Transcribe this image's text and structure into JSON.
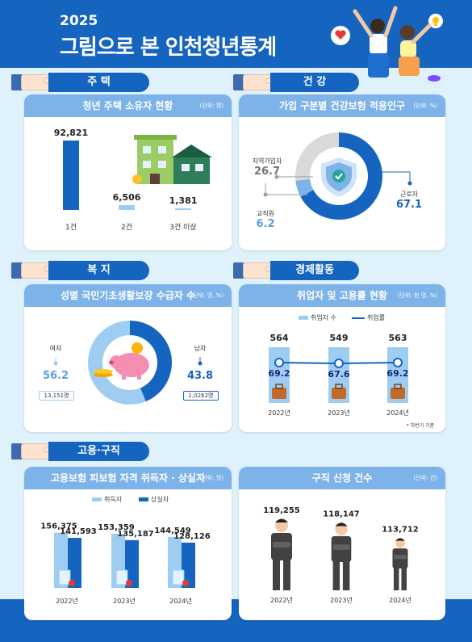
{
  "header": {
    "year": "2025",
    "title": "그림으로 본 인천청년통계"
  },
  "sections": {
    "housing": "주 택",
    "health": "건 강",
    "welfare": "복 지",
    "economy": "경제활동",
    "employment": "고용·구직"
  },
  "housing_card": {
    "title": "청년 주택 소유자 현황",
    "unit": "(단위: 명)"
  },
  "health_card": {
    "title": "가입 구분별 건강보험 적용인구",
    "unit": "(단위: %)",
    "items": [
      {
        "name": "지역가입자",
        "value": "26.7"
      },
      {
        "name": "교직원",
        "value": "6.2"
      },
      {
        "name": "근로자",
        "value": "67.1"
      }
    ]
  },
  "welfare_card": {
    "title": "성별 국민기초생활보장 수급자 수",
    "unit": "(단위: 명, %)",
    "female": {
      "name": "여자",
      "pct": "56.2",
      "count": "13,151명"
    },
    "male": {
      "name": "남자",
      "pct": "43.8",
      "count": "1,0262명"
    }
  },
  "economy_card": {
    "title": "취업자 및 고용률 현황",
    "unit": "(단위: 천 명, %)",
    "legend_bar": "취업자 수",
    "legend_line": "취업률",
    "footnote": "* 하반기 기준"
  },
  "insurance_card": {
    "title": "고용보험 피보험 자격 취득자 · 상실자",
    "unit": "(단위: 명)",
    "legend_a": "취득자",
    "legend_b": "상실자"
  },
  "jobseek_card": {
    "title": "구직 신청 건수",
    "unit": "(단위: 건)"
  },
  "chart_data": [
    {
      "type": "bar",
      "title": "청년 주택 소유자 현황",
      "categories": [
        "1건",
        "2건",
        "3건 이상"
      ],
      "values": [
        92821,
        6506,
        1381
      ],
      "labels": [
        "92,821",
        "6,506",
        "1,381"
      ]
    },
    {
      "type": "pie",
      "title": "가입 구분별 건강보험 적용인구",
      "categories": [
        "근로자",
        "교직원",
        "지역가입자"
      ],
      "values": [
        67.1,
        6.2,
        26.7
      ],
      "colors": [
        "#1565c0",
        "#7db3e8",
        "#d9d9d9"
      ]
    },
    {
      "type": "pie",
      "title": "성별 국민기초생활보장 수급자 수",
      "categories": [
        "남자",
        "여자"
      ],
      "values": [
        43.8,
        56.2
      ],
      "colors": [
        "#1565c0",
        "#9fcdf2"
      ]
    },
    {
      "type": "bar",
      "title": "취업자 및 고용률 현황",
      "categories": [
        "2022년",
        "2023년",
        "2024년"
      ],
      "series": [
        {
          "name": "취업자 수",
          "values": [
            564,
            549,
            563
          ],
          "labels": [
            "564",
            "549",
            "563"
          ]
        },
        {
          "name": "취업률",
          "values": [
            69.2,
            67.6,
            69.2
          ],
          "labels": [
            "69.2",
            "67.6",
            "69.2"
          ]
        }
      ]
    },
    {
      "type": "bar",
      "title": "고용보험 피보험 자격 취득자 · 상실자",
      "categories": [
        "2022년",
        "2023년",
        "2024년"
      ],
      "series": [
        {
          "name": "취득자",
          "values": [
            156375,
            153359,
            144549
          ],
          "labels": [
            "156,375",
            "153,359",
            "144,549"
          ]
        },
        {
          "name": "상실자",
          "values": [
            141593,
            135187,
            128126
          ],
          "labels": [
            "141,593",
            "135,187",
            "128,126"
          ]
        }
      ]
    },
    {
      "type": "bar",
      "title": "구직 신청 건수",
      "categories": [
        "2022년",
        "2023년",
        "2024년"
      ],
      "values": [
        119255,
        118147,
        113712
      ],
      "labels": [
        "119,255",
        "118,147",
        "113,712"
      ]
    }
  ]
}
